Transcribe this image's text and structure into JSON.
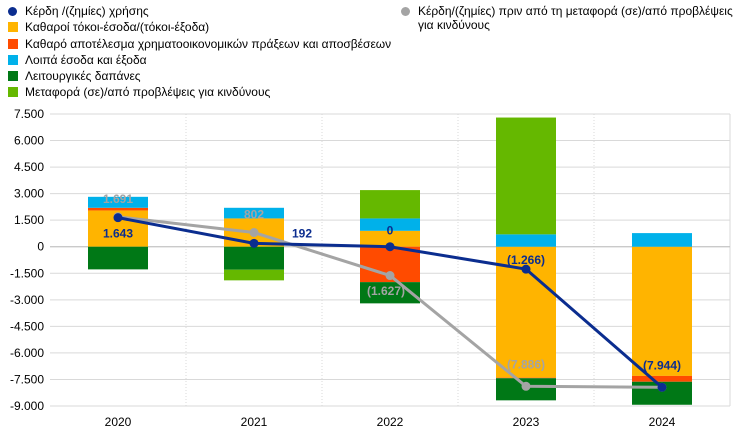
{
  "legend": [
    {
      "label": "Κέρδη /(ζημίες) χρήσης",
      "color": "#0b2d8f",
      "kind": "dot"
    },
    {
      "label": "Καθαροί τόκοι-έσοδα/(τόκοι-έξοδα)",
      "color": "#ffb400",
      "kind": "box"
    },
    {
      "label": "Καθαρό αποτέλεσμα χρηματοοικονομικών πράξεων και αποσβέσεων",
      "color": "#ff4b00",
      "kind": "box"
    },
    {
      "label": "Λοιπά έσοδα και έξοδα",
      "color": "#00b1ea",
      "kind": "box"
    },
    {
      "label": "Λειτουργικές δαπάνες",
      "color": "#007816",
      "kind": "box"
    },
    {
      "label": "Μεταφορά (σε)/από προβλέψεις για κινδύνους",
      "color": "#65b800",
      "kind": "box"
    },
    {
      "label": "Κέρδη/(ζημίες) πριν από τη μεταφορά (σε)/από προβλέψεις για κινδύνους",
      "color": "#a4a4a4",
      "kind": "dot"
    }
  ],
  "chart_data": {
    "type": "bar",
    "stacked": true,
    "categories": [
      "2020",
      "2021",
      "2022",
      "2023",
      "2024"
    ],
    "ylim": [
      -9000,
      7500
    ],
    "yticks": [
      7500,
      6000,
      4500,
      3000,
      1500,
      0,
      -1500,
      -3000,
      -4500,
      -6000,
      -7500,
      -9000
    ],
    "ytick_labels": [
      "7.500",
      "6.000",
      "4.500",
      "3.000",
      "1.500",
      "0",
      "-1.500",
      "-3.000",
      "-4.500",
      "-6.000",
      "-7.500",
      "-9.000"
    ],
    "grid": true,
    "series": [
      {
        "name": "Καθαροί τόκοι-έσοδα/(τόκοι-έξοδα)",
        "color": "#ffb400",
        "values": [
          2050,
          1600,
          900,
          -7400,
          -7300
        ]
      },
      {
        "name": "Καθαρό αποτέλεσμα χρηματοοικονομικών πράξεων και αποσβέσεων",
        "color": "#ff4b00",
        "values": [
          150,
          0,
          -2000,
          -30,
          -330
        ]
      },
      {
        "name": "Λοιπά έσοδα και έξοδα",
        "color": "#00b1ea",
        "values": [
          620,
          600,
          700,
          700,
          770
        ]
      },
      {
        "name": "Λειτουργικές δαπάνες",
        "color": "#007816",
        "values": [
          -1280,
          -1300,
          -1200,
          -1250,
          -1300
        ]
      },
      {
        "name": "Μεταφορά (σε)/από προβλέψεις για κινδύνους",
        "color": "#65b800",
        "values": [
          0,
          -600,
          1600,
          6600,
          0
        ]
      }
    ],
    "lines": [
      {
        "name": "Κέρδη /(ζημίες) χρήσης",
        "color": "#0b2d8f",
        "values": [
          1643,
          192,
          0,
          -1266,
          -7944
        ],
        "labels": [
          "1.643",
          "192",
          "0",
          "(1.266)",
          "(7.944)"
        ]
      },
      {
        "name": "Κέρδη/(ζημίες) πριν από τη μεταφορά (σε)/από προβλέψεις για κινδύνους",
        "color": "#a4a4a4",
        "values": [
          1691,
          802,
          -1627,
          -7886,
          -7944
        ],
        "labels": [
          "1.691",
          "802",
          "(1.627)",
          "(7.886)",
          ""
        ]
      }
    ]
  }
}
